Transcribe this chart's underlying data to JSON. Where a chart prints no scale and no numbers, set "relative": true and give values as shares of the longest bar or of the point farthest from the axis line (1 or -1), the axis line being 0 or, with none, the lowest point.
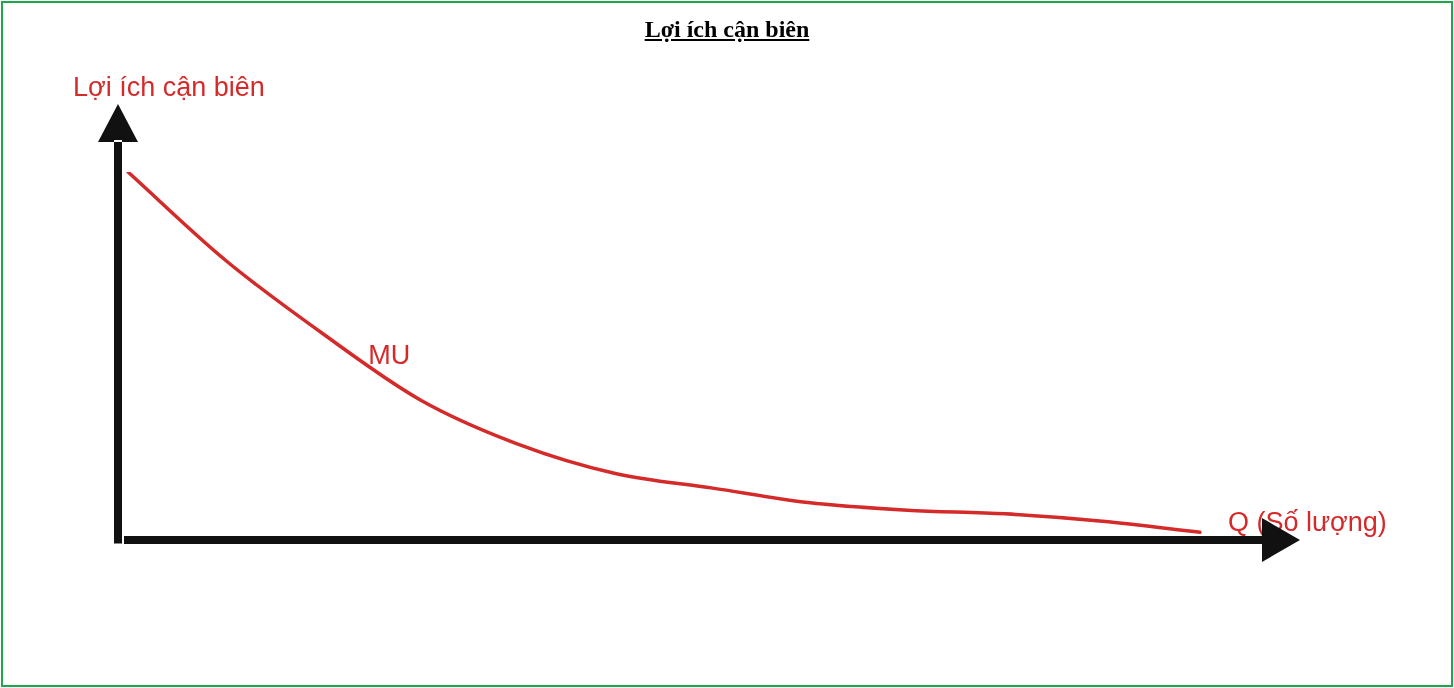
{
  "chart_data": {
    "type": "line",
    "title": "Lợi ích cận biên",
    "xlabel": "Q (Số lượng)",
    "ylabel": "Lợi ích cận biên",
    "relative": true,
    "legend": false,
    "grid": false,
    "marker": "none",
    "categories": [
      null,
      null,
      null,
      null,
      null,
      null,
      null,
      null,
      null,
      null,
      null,
      null
    ],
    "series": [
      {
        "name": "MU",
        "color": "#d42a2a",
        "values": [
          1,
          0.76,
          0.56,
          0.38,
          0.26,
          0.18,
          0.14,
          0.1,
          0.08,
          0.07,
          0.05,
          0.02
        ]
      }
    ]
  }
}
